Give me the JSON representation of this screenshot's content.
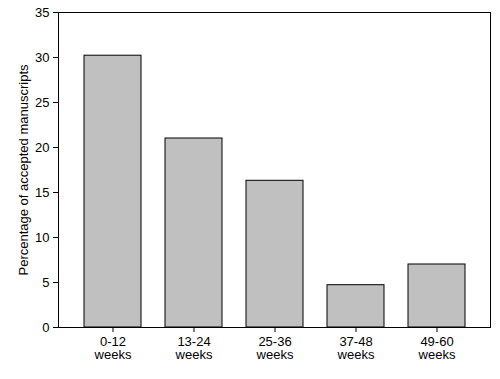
{
  "chart_data": {
    "type": "bar",
    "y_label": "Percentage of accepted manuscripts",
    "categories": [
      "0-12 weeks",
      "13-24 weeks",
      "25-36 weeks",
      "37-48 weeks",
      "49-60 weeks"
    ],
    "values": [
      30.2,
      21,
      16.3,
      4.7,
      7
    ],
    "color": "#c0c0c0",
    "ylim": [
      0,
      35
    ],
    "yticks": [
      0,
      5,
      10,
      15,
      20,
      25,
      30,
      35
    ],
    "grid": false
  }
}
